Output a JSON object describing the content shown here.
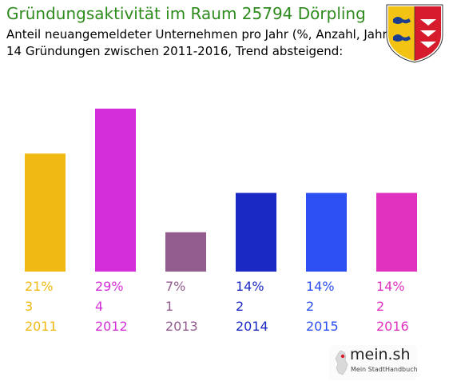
{
  "header": {
    "title": "Gründungsaktivität im Raum 25794 Dörpling",
    "subtitle_1": "Anteil neuangemeldeter Unternehmen pro Jahr (%, Anzahl, Jahr)",
    "subtitle_2": "14 Gründungen zwischen 2011-2016, Trend absteigend:"
  },
  "logo": {
    "name": "mein.sh",
    "tagline": "Mein StadtHandbuch"
  },
  "chart_data": {
    "type": "bar",
    "title": "Gründungsaktivität im Raum 25794 Dörpling",
    "categories": [
      "2011",
      "2012",
      "2013",
      "2014",
      "2015",
      "2016"
    ],
    "values": [
      21,
      29,
      7,
      14,
      14,
      14
    ],
    "percent_labels": [
      "21%",
      "29%",
      "7%",
      "14%",
      "14%",
      "14%"
    ],
    "counts": [
      "3",
      "4",
      "1",
      "2",
      "2",
      "2"
    ],
    "colors": [
      "#f0b914",
      "#d42ed8",
      "#935c8e",
      "#1b29c4",
      "#2b4ff0",
      "#e031bf"
    ],
    "ylim": [
      0,
      29
    ],
    "grid": false,
    "legend": "none"
  }
}
